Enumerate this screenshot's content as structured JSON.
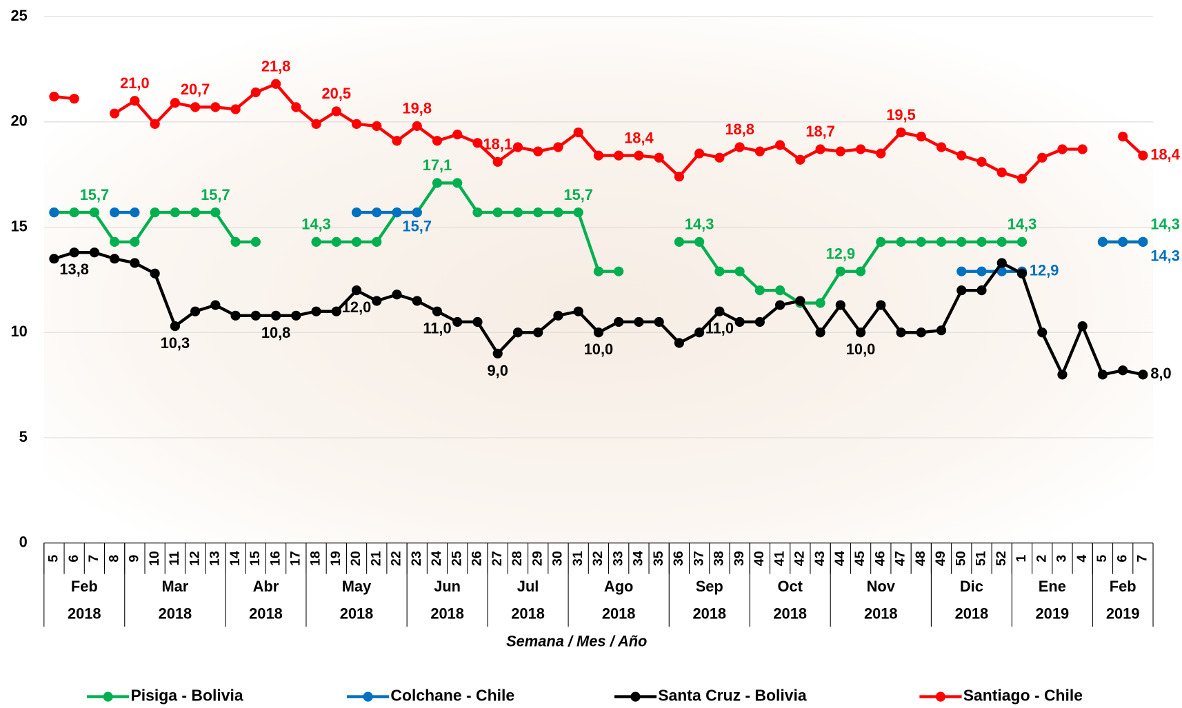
{
  "chart_data": {
    "type": "line",
    "x_axis_title": "Semana / Mes / Año",
    "groups": [
      {
        "month": "Feb",
        "year": "2018",
        "weeks": [
          "5",
          "6",
          "7",
          "8"
        ]
      },
      {
        "month": "Mar",
        "year": "2018",
        "weeks": [
          "9",
          "10",
          "11",
          "12",
          "13"
        ]
      },
      {
        "month": "Abr",
        "year": "2018",
        "weeks": [
          "14",
          "15",
          "16",
          "17"
        ]
      },
      {
        "month": "May",
        "year": "2018",
        "weeks": [
          "18",
          "19",
          "20",
          "21",
          "22"
        ]
      },
      {
        "month": "Jun",
        "year": "2018",
        "weeks": [
          "23",
          "24",
          "25",
          "26"
        ]
      },
      {
        "month": "Jul",
        "year": "2018",
        "weeks": [
          "27",
          "28",
          "29",
          "30"
        ]
      },
      {
        "month": "Ago",
        "year": "2018",
        "weeks": [
          "31",
          "32",
          "33",
          "34",
          "35"
        ]
      },
      {
        "month": "Sep",
        "year": "2018",
        "weeks": [
          "36",
          "37",
          "38",
          "39"
        ]
      },
      {
        "month": "Oct",
        "year": "2018",
        "weeks": [
          "40",
          "41",
          "42",
          "43"
        ]
      },
      {
        "month": "Nov",
        "year": "2018",
        "weeks": [
          "44",
          "45",
          "46",
          "47",
          "48"
        ]
      },
      {
        "month": "Dic",
        "year": "2018",
        "weeks": [
          "49",
          "50",
          "51",
          "52"
        ]
      },
      {
        "month": "Ene",
        "year": "2019",
        "weeks": [
          "1",
          "2",
          "3",
          "4"
        ]
      },
      {
        "month": "Feb",
        "year": "2019",
        "weeks": [
          "5",
          "6",
          "7"
        ]
      }
    ],
    "ylim": [
      0,
      25
    ],
    "yticks": [
      0,
      5,
      10,
      15,
      20,
      25
    ],
    "grid": true,
    "legend": "bottom",
    "series": [
      {
        "name": "Pisiga - Bolivia",
        "color": "#00b050",
        "values": [
          15.7,
          15.7,
          15.7,
          14.3,
          14.3,
          15.7,
          15.7,
          15.7,
          15.7,
          14.3,
          14.3,
          null,
          null,
          14.3,
          14.3,
          14.3,
          14.3,
          15.7,
          15.7,
          17.1,
          17.1,
          15.7,
          15.7,
          15.7,
          15.7,
          15.7,
          15.7,
          12.9,
          12.9,
          null,
          null,
          14.3,
          14.3,
          12.9,
          12.9,
          12.0,
          12.0,
          11.4,
          11.4,
          12.9,
          12.9,
          14.3,
          14.3,
          14.3,
          14.3,
          14.3,
          14.3,
          14.3,
          14.3,
          null,
          null,
          null,
          14.3,
          14.3,
          14.3
        ],
        "value_labels": [
          null,
          null,
          "15,7",
          null,
          null,
          null,
          null,
          null,
          "15,7",
          null,
          null,
          null,
          null,
          "14,3",
          null,
          null,
          null,
          null,
          null,
          "17,1",
          null,
          null,
          null,
          null,
          null,
          null,
          "15,7",
          null,
          null,
          null,
          null,
          null,
          "14,3",
          null,
          null,
          null,
          null,
          null,
          null,
          "12,9",
          null,
          null,
          null,
          null,
          null,
          null,
          null,
          null,
          "14,3",
          null,
          null,
          null,
          null,
          null,
          "14,3"
        ]
      },
      {
        "name": "Colchane - Chile",
        "color": "#0070c0",
        "values": [
          15.7,
          null,
          null,
          15.7,
          15.7,
          null,
          null,
          null,
          null,
          null,
          null,
          null,
          null,
          null,
          null,
          15.7,
          15.7,
          15.7,
          15.7,
          null,
          null,
          null,
          null,
          null,
          null,
          null,
          null,
          null,
          null,
          null,
          null,
          null,
          null,
          null,
          null,
          null,
          null,
          null,
          null,
          null,
          null,
          null,
          null,
          null,
          null,
          12.9,
          12.9,
          12.9,
          12.9,
          null,
          null,
          null,
          14.3,
          14.3,
          14.3
        ],
        "value_labels": [
          null,
          null,
          null,
          null,
          null,
          null,
          null,
          null,
          null,
          null,
          null,
          null,
          null,
          null,
          null,
          null,
          null,
          null,
          "15,7",
          null,
          null,
          null,
          null,
          null,
          null,
          null,
          null,
          null,
          null,
          null,
          null,
          null,
          null,
          null,
          null,
          null,
          null,
          null,
          null,
          null,
          null,
          null,
          null,
          null,
          null,
          null,
          null,
          null,
          "12,9",
          null,
          null,
          null,
          null,
          null,
          "14,3"
        ]
      },
      {
        "name": "Santa Cruz - Bolivia",
        "color": "#000000",
        "values": [
          13.5,
          13.8,
          13.8,
          13.5,
          13.3,
          12.8,
          10.3,
          11.0,
          11.3,
          10.8,
          10.8,
          10.8,
          10.8,
          11.0,
          11.0,
          12.0,
          11.5,
          11.8,
          11.5,
          11.0,
          10.5,
          10.5,
          9.0,
          10.0,
          10.0,
          10.8,
          11.0,
          10.0,
          10.5,
          10.5,
          10.5,
          9.5,
          10.0,
          11.0,
          10.5,
          10.5,
          11.3,
          11.5,
          10.0,
          11.3,
          10.0,
          11.3,
          10.0,
          10.0,
          10.1,
          12.0,
          12.0,
          13.3,
          12.8,
          10.0,
          8.0,
          10.3,
          8.0,
          8.2,
          8.0
        ],
        "value_labels": [
          null,
          "13,8",
          null,
          null,
          null,
          null,
          "10,3",
          null,
          null,
          null,
          null,
          "10,8",
          null,
          null,
          null,
          "12,0",
          null,
          null,
          null,
          "11,0",
          null,
          null,
          "9,0",
          null,
          null,
          null,
          null,
          "10,0",
          null,
          null,
          null,
          null,
          null,
          "11,0",
          null,
          null,
          null,
          null,
          null,
          null,
          "10,0",
          null,
          null,
          null,
          null,
          null,
          null,
          null,
          null,
          null,
          null,
          null,
          null,
          null,
          "8,0"
        ]
      },
      {
        "name": "Santiago - Chile",
        "color": "#ff0000",
        "values": [
          21.2,
          21.1,
          null,
          20.4,
          21.0,
          19.9,
          20.9,
          20.7,
          20.7,
          20.6,
          21.4,
          21.8,
          20.7,
          19.9,
          20.5,
          19.9,
          19.8,
          19.1,
          19.8,
          19.1,
          19.4,
          19.0,
          18.1,
          18.8,
          18.6,
          18.8,
          19.5,
          18.4,
          18.4,
          18.4,
          18.3,
          17.4,
          18.5,
          18.3,
          18.8,
          18.6,
          18.9,
          18.2,
          18.7,
          18.6,
          18.7,
          18.5,
          19.5,
          19.3,
          18.8,
          18.4,
          18.1,
          17.6,
          17.3,
          18.3,
          18.7,
          18.7,
          null,
          19.3,
          18.4
        ],
        "value_labels": [
          null,
          null,
          null,
          null,
          "21,0",
          null,
          null,
          "20,7",
          null,
          null,
          null,
          "21,8",
          null,
          null,
          "20,5",
          null,
          null,
          null,
          "19,8",
          null,
          null,
          null,
          "18,1",
          null,
          null,
          null,
          null,
          null,
          null,
          "18,4",
          null,
          null,
          null,
          null,
          "18,8",
          null,
          null,
          null,
          "18,7",
          null,
          null,
          null,
          "19,5",
          null,
          null,
          null,
          null,
          null,
          null,
          null,
          null,
          null,
          null,
          null,
          "18,4"
        ]
      }
    ]
  }
}
